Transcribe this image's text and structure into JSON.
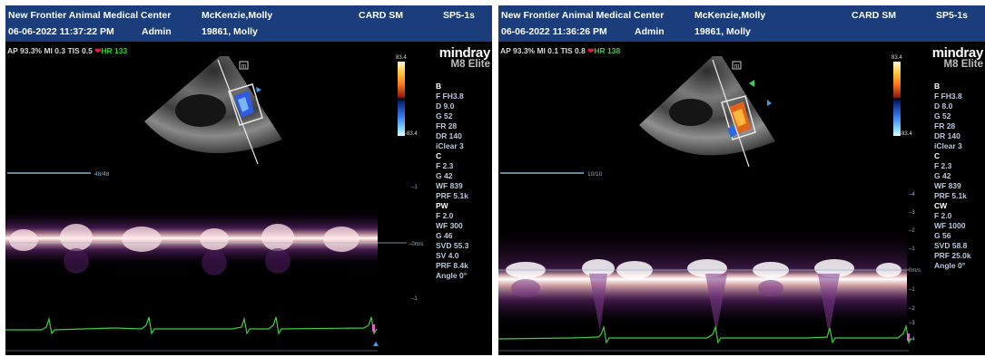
{
  "screens": [
    {
      "header": {
        "clinic": "New Frontier Animal Medical Center",
        "patient": "McKenzie,Molly",
        "datetime": "06-06-2022  11:37:22 PM",
        "operator": "Admin",
        "patient_id": "19861, Molly",
        "exam": "CARD SM",
        "probe": "SP5-1s"
      },
      "status": {
        "text": "AP 93.3%  MI 0.3  TIS 0.5",
        "hr": "HR 133"
      },
      "brand": {
        "logo": "mindray",
        "model": "M8 Elite"
      },
      "colorbar": {
        "top": "83.4",
        "bottom": "-83.4"
      },
      "params": {
        "b": {
          "title": "B",
          "lines": "F FH3.8\nD 9.0\nG 52\nFR 28\nDR 140\niClear 3"
        },
        "c": {
          "title": "C",
          "lines": "F 2.3\nG 42\nWF 839\nPRF 5.1k"
        },
        "d": {
          "title": "PW",
          "lines": "F 2.0\nWF 300\nG 46\nSVD 55.3\nSV 4.0\nPRF 8.4k\nAngle 0°"
        }
      },
      "sweep_label": "48/48",
      "m_icon": "m",
      "scale": {
        "ticks": [
          "–1",
          "–0m/s",
          "–1"
        ],
        "unit": "m/s"
      }
    },
    {
      "header": {
        "clinic": "New Frontier Animal Medical Center",
        "patient": "McKenzie,Molly",
        "datetime": "06-06-2022  11:36:26 PM",
        "operator": "Admin",
        "patient_id": "19861, Molly",
        "exam": "CARD SM",
        "probe": "SP5-1s"
      },
      "status": {
        "text": "AP 93.3%  MI 0.1  TIS 0.8",
        "hr": "HR 138"
      },
      "brand": {
        "logo": "mindray",
        "model": "M8 Elite"
      },
      "colorbar": {
        "top": "83.4",
        "bottom": "-83.4"
      },
      "params": {
        "b": {
          "title": "B",
          "lines": "F FH3.8\nD 8.0\nG 52\nFR 28\nDR 140\niClear 3"
        },
        "c": {
          "title": "C",
          "lines": "F 2.3\nG 42\nWF 839\nPRF 5.1k"
        },
        "d": {
          "title": "CW",
          "lines": "F 2.0\nWF 1000\nG 56\nSVD 58.8\nPRF 25.0k\nAngle 0°"
        }
      },
      "sweep_label": "10/10",
      "m_icon": "m",
      "scale": {
        "ticks": [
          "–4",
          "–3",
          "–2",
          "–1",
          "0m/s",
          "–1",
          "–2",
          "–3",
          "–4"
        ],
        "unit": "m/s"
      }
    }
  ],
  "colors": {
    "header_bg": "#1b3d7c",
    "hr": "#32d040",
    "ecg": "#3cd040",
    "baseline": "#9fb7c8"
  }
}
